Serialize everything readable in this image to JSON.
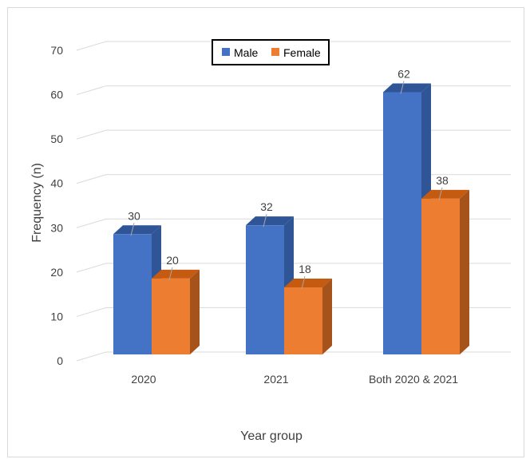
{
  "chart_data": {
    "type": "bar",
    "categories": [
      "2020",
      "2021",
      "Both 2020 & 2021"
    ],
    "series": [
      {
        "name": "Male",
        "values": [
          30,
          32,
          62
        ],
        "color": "#4472C4",
        "side_color": "#2F5597",
        "top_color": "#2F5597"
      },
      {
        "name": "Female",
        "values": [
          20,
          18,
          38
        ],
        "color": "#ED7D31",
        "side_color": "#A5521B",
        "top_color": "#C55A11"
      }
    ],
    "xlabel": "Year group",
    "ylabel": "Frequency (n)",
    "ylim": [
      0,
      70
    ],
    "yticks": [
      0,
      10,
      20,
      30,
      40,
      50,
      60,
      70
    ],
    "grid": true,
    "legend_position": "top-center",
    "style": "3d-clustered-column"
  }
}
